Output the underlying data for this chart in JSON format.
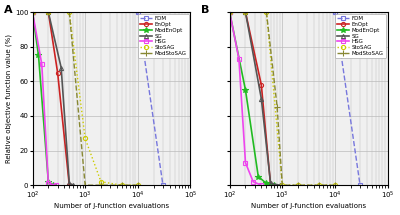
{
  "panel_A": {
    "FDM": {
      "x": [
        100,
        10000,
        30000
      ],
      "y": [
        100,
        100,
        0
      ],
      "color": "#7777dd",
      "ls": "--",
      "marker": "s",
      "ms": 3,
      "mfc": "none",
      "lw": 1.0
    },
    "EnOpt": {
      "x": [
        100,
        200,
        300,
        500
      ],
      "y": [
        100,
        100,
        65,
        0
      ],
      "color": "#cc2222",
      "ls": "-",
      "marker": "o",
      "ms": 3,
      "mfc": "none",
      "lw": 1.2
    },
    "ModEnOpt": {
      "x": [
        100,
        130,
        200,
        250
      ],
      "y": [
        100,
        75,
        2,
        0
      ],
      "color": "#22bb22",
      "ls": "-",
      "marker": "*",
      "ms": 4,
      "mfc": "#22bb22",
      "lw": 1.2
    },
    "SG": {
      "x": [
        100,
        200,
        350,
        500,
        600
      ],
      "y": [
        100,
        100,
        68,
        1,
        0
      ],
      "color": "#555555",
      "ls": "-",
      "marker": "^",
      "ms": 3,
      "mfc": "none",
      "lw": 1.2
    },
    "HSG": {
      "x": [
        100,
        150,
        200,
        280
      ],
      "y": [
        100,
        70,
        1,
        0
      ],
      "color": "#ee44ee",
      "ls": "-",
      "marker": "s",
      "ms": 3,
      "mfc": "none",
      "lw": 1.2
    },
    "StoSAG": {
      "x": [
        100,
        200,
        500,
        1000,
        2000,
        5000,
        10000
      ],
      "y": [
        100,
        100,
        100,
        27,
        2,
        0,
        0
      ],
      "color": "#cccc00",
      "ls": ":",
      "marker": "o",
      "ms": 3,
      "mfc": "none",
      "lw": 1.0
    },
    "ModStoSAG": {
      "x": [
        100,
        200,
        500,
        1000,
        2000,
        5000,
        10000
      ],
      "y": [
        100,
        100,
        100,
        0,
        0,
        0,
        0
      ],
      "color": "#888833",
      "ls": "--",
      "marker": "+",
      "ms": 4,
      "mfc": "#888833",
      "lw": 1.0
    }
  },
  "panel_B": {
    "FDM": {
      "x": [
        100,
        10000,
        30000
      ],
      "y": [
        100,
        100,
        0
      ],
      "color": "#7777dd",
      "ls": "--",
      "marker": "s",
      "ms": 3,
      "mfc": "none",
      "lw": 1.0
    },
    "EnOpt": {
      "x": [
        100,
        200,
        400,
        600
      ],
      "y": [
        100,
        100,
        58,
        0
      ],
      "color": "#cc2222",
      "ls": "-",
      "marker": "o",
      "ms": 3,
      "mfc": "none",
      "lw": 1.2
    },
    "ModEnOpt": {
      "x": [
        100,
        200,
        350,
        500,
        700
      ],
      "y": [
        100,
        55,
        5,
        1,
        0
      ],
      "color": "#22bb22",
      "ls": "-",
      "marker": "*",
      "ms": 4,
      "mfc": "#22bb22",
      "lw": 1.2
    },
    "SG": {
      "x": [
        100,
        200,
        400,
        600,
        900
      ],
      "y": [
        100,
        100,
        50,
        1,
        0
      ],
      "color": "#555555",
      "ls": "-",
      "marker": "^",
      "ms": 3,
      "mfc": "none",
      "lw": 1.2
    },
    "HSG": {
      "x": [
        100,
        150,
        200,
        280,
        400
      ],
      "y": [
        100,
        73,
        13,
        2,
        0
      ],
      "color": "#ee44ee",
      "ls": "-",
      "marker": "s",
      "ms": 3,
      "mfc": "none",
      "lw": 1.2
    },
    "StoSAG": {
      "x": [
        100,
        200,
        500,
        1000,
        2000,
        5000,
        10000
      ],
      "y": [
        100,
        100,
        100,
        0,
        0,
        0,
        0
      ],
      "color": "#cccc00",
      "ls": ":",
      "marker": "o",
      "ms": 3,
      "mfc": "none",
      "lw": 1.0
    },
    "ModStoSAG": {
      "x": [
        100,
        200,
        500,
        800,
        1000,
        2000,
        5000,
        10000
      ],
      "y": [
        100,
        100,
        100,
        45,
        0,
        0,
        0,
        0
      ],
      "color": "#888833",
      "ls": "--",
      "marker": "+",
      "ms": 4,
      "mfc": "#888833",
      "lw": 1.0
    }
  },
  "xlabel": "Number of J-function evaluations",
  "ylabel": "Relative objective function value (%)",
  "xlim": [
    100,
    100000
  ],
  "ylim": [
    0,
    100
  ],
  "yticks": [
    0,
    20,
    40,
    60,
    80,
    100
  ],
  "bg_color": "#f0f0f0",
  "grid_color": "#bbbbbb",
  "legend_order": [
    "FDM",
    "EnOpt",
    "ModEnOpt",
    "SG",
    "HSG",
    "StoSAG",
    "ModStoSAG"
  ]
}
